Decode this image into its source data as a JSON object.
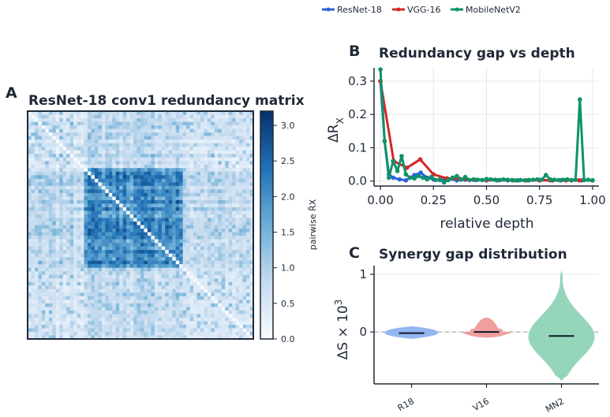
{
  "legend": [
    {
      "name": "ResNet-18",
      "color": "#2b63d9"
    },
    {
      "name": "VGG-16",
      "color": "#d62728"
    },
    {
      "name": "MobileNetV2",
      "color": "#0e9466"
    }
  ],
  "panel_a": {
    "letter": "A",
    "title": "ResNet-18 conv1 redundancy matrix",
    "colorbar_label": "pairwise R̄X",
    "colorbar_ticks": [
      "0.0",
      "0.5",
      "1.0",
      "1.5",
      "2.0",
      "2.5",
      "3.0"
    ],
    "colorbar_range": [
      0,
      3.2
    ]
  },
  "panel_b": {
    "letter": "B",
    "title": "Redundancy gap vs depth",
    "xlabel": "relative depth",
    "ylabel_main": "ΔR",
    "ylabel_sub": "X",
    "xticks": [
      "0.00",
      "0.25",
      "0.50",
      "0.75",
      "1.00"
    ],
    "yticks": [
      "0.0",
      "0.1",
      "0.2",
      "0.3"
    ]
  },
  "panel_c": {
    "letter": "C",
    "title": "Synergy gap distribution",
    "ylabel_main": "ΔS × 10",
    "ylabel_exp": "3",
    "yticks": [
      "0",
      "1"
    ],
    "categories": [
      "R18",
      "V16",
      "MN2"
    ]
  },
  "chart_data": [
    {
      "type": "heatmap",
      "title": "ResNet-18 conv1 redundancy matrix",
      "size": 64,
      "block": [
        16,
        44
      ],
      "value_range": [
        0,
        3.2
      ],
      "colorbar_label": "pairwise R̄X"
    },
    {
      "type": "line",
      "title": "Redundancy gap vs depth",
      "xlabel": "relative depth",
      "ylabel": "ΔR_X",
      "xlim": [
        -0.03,
        1.03
      ],
      "ylim": [
        -0.015,
        0.34
      ],
      "grid": true,
      "legend_position": "top",
      "series": [
        {
          "name": "ResNet-18",
          "color": "#2b63d9",
          "points": [
            [
              0.0,
              0.3
            ],
            [
              0.02,
              0.12
            ],
            [
              0.04,
              0.02
            ],
            [
              0.06,
              0.01
            ],
            [
              0.09,
              0.005
            ],
            [
              0.12,
              0.002
            ],
            [
              0.16,
              0.018
            ],
            [
              0.19,
              0.025
            ],
            [
              0.22,
              0.01
            ],
            [
              0.25,
              0.005
            ],
            [
              0.28,
              0.003
            ],
            [
              0.32,
              0.006
            ],
            [
              0.36,
              0.002
            ],
            [
              0.4,
              0.004
            ],
            [
              0.45,
              0.003
            ],
            [
              0.5,
              0.002
            ],
            [
              0.55,
              0.002
            ],
            [
              0.6,
              0.002
            ],
            [
              0.65,
              0.002
            ],
            [
              0.7,
              0.002
            ],
            [
              0.75,
              0.003
            ],
            [
              0.8,
              0.002
            ],
            [
              0.85,
              0.002
            ],
            [
              0.9,
              0.002
            ],
            [
              0.95,
              0.002
            ],
            [
              1.0,
              0.002
            ]
          ]
        },
        {
          "name": "VGG-16",
          "color": "#d62728",
          "points": [
            [
              0.0,
              0.3
            ],
            [
              0.0625,
              0.06
            ],
            [
              0.125,
              0.04
            ],
            [
              0.1875,
              0.065
            ],
            [
              0.25,
              0.02
            ],
            [
              0.3125,
              0.008
            ],
            [
              0.375,
              0.006
            ],
            [
              0.4375,
              0.004
            ],
            [
              0.5,
              0.003
            ],
            [
              0.5625,
              0.003
            ],
            [
              0.625,
              0.002
            ],
            [
              0.6875,
              0.002
            ],
            [
              0.75,
              0.002
            ],
            [
              0.8125,
              0.002
            ],
            [
              0.875,
              0.002
            ],
            [
              0.9375,
              0.002
            ],
            [
              1.0,
              0.002
            ]
          ]
        },
        {
          "name": "MobileNetV2",
          "color": "#0e9466",
          "points": [
            [
              0.0,
              0.335
            ],
            [
              0.02,
              0.12
            ],
            [
              0.04,
              0.01
            ],
            [
              0.06,
              0.06
            ],
            [
              0.08,
              0.03
            ],
            [
              0.1,
              0.075
            ],
            [
              0.12,
              0.02
            ],
            [
              0.14,
              0.01
            ],
            [
              0.16,
              0.008
            ],
            [
              0.18,
              0.015
            ],
            [
              0.2,
              0.01
            ],
            [
              0.22,
              0.005
            ],
            [
              0.24,
              0.012
            ],
            [
              0.26,
              0.003
            ],
            [
              0.28,
              0.005
            ],
            [
              0.3,
              -0.004
            ],
            [
              0.32,
              0.003
            ],
            [
              0.34,
              0.01
            ],
            [
              0.36,
              0.015
            ],
            [
              0.38,
              0.004
            ],
            [
              0.4,
              0.012
            ],
            [
              0.42,
              0.003
            ],
            [
              0.44,
              0.005
            ],
            [
              0.46,
              0.004
            ],
            [
              0.48,
              0.003
            ],
            [
              0.5,
              0.006
            ],
            [
              0.52,
              0.005
            ],
            [
              0.54,
              0.004
            ],
            [
              0.56,
              0.003
            ],
            [
              0.58,
              0.005
            ],
            [
              0.6,
              0.004
            ],
            [
              0.62,
              0.003
            ],
            [
              0.64,
              0.002
            ],
            [
              0.66,
              0.003
            ],
            [
              0.68,
              0.002
            ],
            [
              0.7,
              0.003
            ],
            [
              0.72,
              0.004
            ],
            [
              0.74,
              0.005
            ],
            [
              0.76,
              0.004
            ],
            [
              0.78,
              0.018
            ],
            [
              0.8,
              0.005
            ],
            [
              0.82,
              0.004
            ],
            [
              0.84,
              0.003
            ],
            [
              0.86,
              0.004
            ],
            [
              0.88,
              0.005
            ],
            [
              0.9,
              0.003
            ],
            [
              0.92,
              0.004
            ],
            [
              0.94,
              0.245
            ],
            [
              0.96,
              0.003
            ],
            [
              0.98,
              0.004
            ],
            [
              1.0,
              0.002
            ]
          ]
        }
      ]
    },
    {
      "type": "violin",
      "title": "Synergy gap distribution",
      "ylabel": "ΔS × 10^3",
      "ylim": [
        -0.9,
        1.15
      ],
      "categories": [
        "R18",
        "V16",
        "MN2"
      ],
      "series": [
        {
          "name": "R18",
          "color": "#8fb3f0",
          "median": -0.02,
          "min": -0.12,
          "max": 0.1
        },
        {
          "name": "V16",
          "color": "#ef9a9a",
          "median": 0.0,
          "min": -0.1,
          "max": 0.25
        },
        {
          "name": "MN2",
          "color": "#8fd3b6",
          "median": -0.07,
          "min": -0.85,
          "max": 1.07
        }
      ]
    }
  ]
}
